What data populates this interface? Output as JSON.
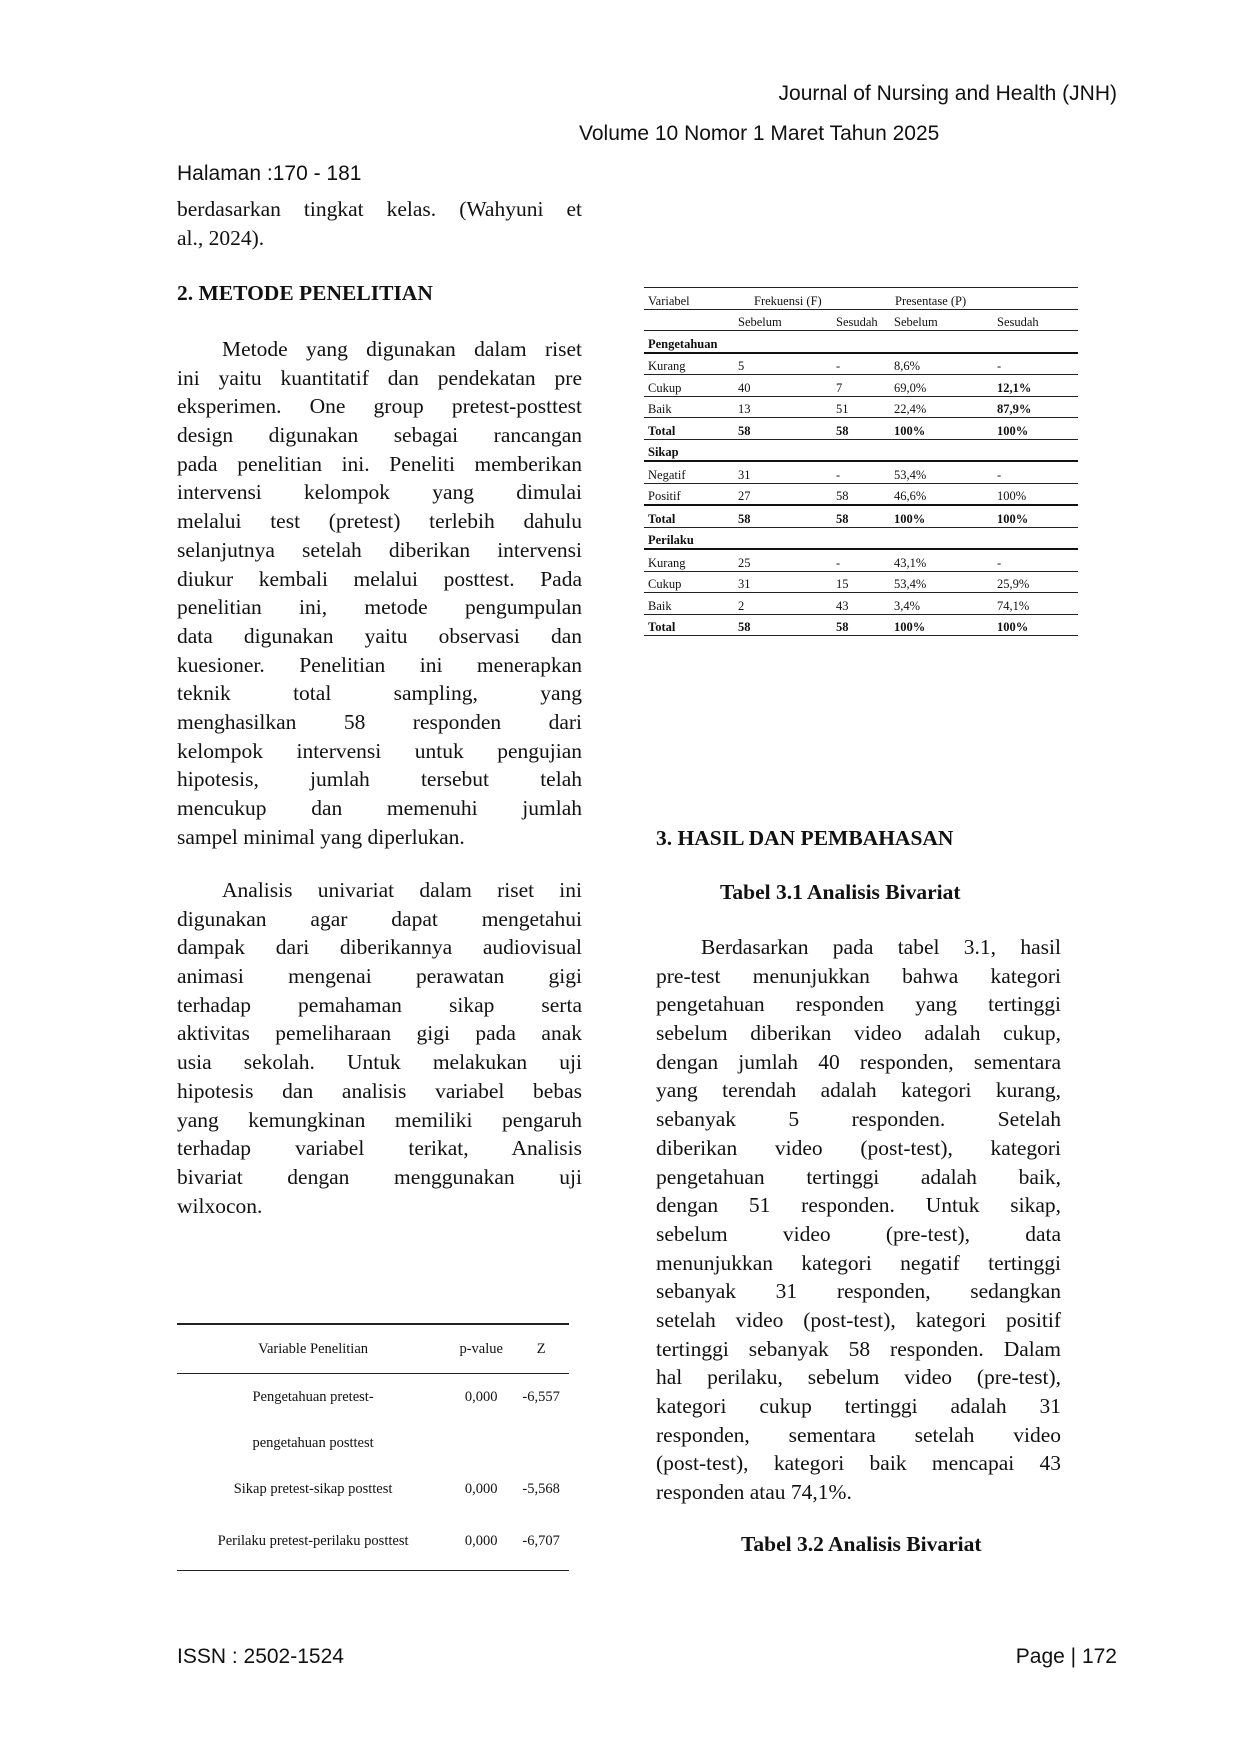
{
  "header": {
    "journal": "Journal of Nursing and Health (JNH)",
    "volume": "Volume 10  Nomor 1 Maret  Tahun 2025",
    "pages": "Halaman :170 - 181"
  },
  "left": {
    "intro_lines": [
      "berdasarkan tingkat kelas. (Wahyuni et",
      "al., 2024)."
    ],
    "section2_title": "2.     METODE PENELITIAN",
    "para1_lines": [
      "Metode yang digunakan dalam riset",
      "ini yaitu kuantitatif dan pendekatan pre",
      "eksperimen. One group pretest-posttest",
      "design digunakan sebagai rancangan",
      "pada penelitian ini. Peneliti memberikan",
      "intervensi kelompok yang dimulai",
      "melalui test (pretest) terlebih dahulu",
      "selanjutnya setelah diberikan intervensi",
      "diukur kembali melalui posttest. Pada",
      "penelitian ini, metode pengumpulan",
      "data digunakan yaitu     observasi dan",
      "kuesioner. Penelitian ini menerapkan",
      "teknik total sampling, yang",
      "menghasilkan 58 responden dari",
      "kelompok intervensi untuk pengujian",
      "hipotesis, jumlah tersebut telah",
      "mencukup dan memenuhi jumlah",
      "sampel minimal yang diperlukan."
    ],
    "para2_lines": [
      "Analisis univariat dalam riset ini",
      "digunakan agar dapat mengetahui",
      "dampak dari diberikannya audiovisual",
      "animasi mengenai perawatan gigi",
      "terhadap pemahaman sikap serta",
      "aktivitas pemeliharaan gigi pada anak",
      "usia sekolah. Untuk melakukan uji",
      "hipotesis dan analisis variabel bebas",
      "yang kemungkinan memiliki pengaruh",
      "terhadap variabel terikat, Analisis",
      "bivariat dengan menggunakan uji",
      "wilxocon."
    ]
  },
  "table1": {
    "headers": {
      "variabel": "Variabel",
      "frekuensi": "Frekuensi (F)",
      "presentase": "Presentase (P)",
      "sebelum": "Sebelum",
      "sesudah": "Sesudah"
    },
    "groups": [
      {
        "name": "Pengetahuan",
        "rows": [
          [
            "Kurang",
            "5",
            "-",
            "8,6%",
            "-"
          ],
          [
            "Cukup",
            "40",
            "7",
            "69,0%",
            "12,1%"
          ],
          [
            "Baik",
            "13",
            "51",
            "22,4%",
            "87,9%"
          ],
          [
            "Total",
            "58",
            "58",
            "100%",
            "100%"
          ]
        ]
      },
      {
        "name": "Sikap",
        "rows": [
          [
            "Negatif",
            "31",
            "-",
            "53,4%",
            "-"
          ],
          [
            "Positif",
            "27",
            "58",
            "46,6%",
            "100%"
          ],
          [
            "Total",
            "58",
            "58",
            "100%",
            "100%"
          ]
        ]
      },
      {
        "name": "Perilaku",
        "rows": [
          [
            "Kurang",
            "25",
            "-",
            "43,1%",
            "-"
          ],
          [
            "Cukup",
            "31",
            "15",
            "53,4%",
            "25,9%"
          ],
          [
            "Baik",
            "2",
            "43",
            "3,4%",
            "74,1%"
          ],
          [
            "Total",
            "58",
            "58",
            "100%",
            "100%"
          ]
        ]
      }
    ]
  },
  "table2": {
    "headers": [
      "Variable Penelitian",
      "p-value",
      "Z"
    ],
    "rows": [
      [
        "Pengetahuan pretest-",
        "0,000",
        "-6,557"
      ],
      [
        "pengetahuan posttest",
        "",
        ""
      ],
      [
        "Sikap pretest-sikap posttest",
        "0,000",
        "-5,568"
      ],
      [
        "Perilaku pretest-perilaku posttest",
        "0,000",
        "-6,707"
      ]
    ]
  },
  "right": {
    "section3_title": "3.     HASIL DAN PEMBAHASAN",
    "table31_caption": "Tabel 3.1 Analisis Bivariat",
    "para_lines": [
      "Berdasarkan pada tabel 3.1, hasil",
      "pre-test menunjukkan bahwa kategori",
      "pengetahuan responden yang tertinggi",
      "sebelum diberikan video adalah cukup,",
      "dengan jumlah 40 responden, sementara",
      "yang terendah adalah kategori kurang,",
      "sebanyak 5 responden. Setelah",
      "diberikan video (post-test), kategori",
      "pengetahuan tertinggi adalah baik,",
      "dengan 51 responden. Untuk sikap,",
      "sebelum video (pre-test), data",
      "menunjukkan kategori negatif tertinggi",
      "sebanyak 31 responden, sedangkan",
      "setelah video (post-test), kategori positif",
      "tertinggi sebanyak 58 responden. Dalam",
      "hal perilaku, sebelum video (pre-test),",
      "kategori cukup tertinggi adalah 31",
      "responden, sementara setelah video",
      "(post-test), kategori baik mencapai 43",
      "responden atau 74,1%."
    ],
    "table32_caption": "Tabel 3.2 Analisis Bivariat"
  },
  "footer": {
    "issn": "ISSN : 2502-1524",
    "page": "Page | 172"
  }
}
